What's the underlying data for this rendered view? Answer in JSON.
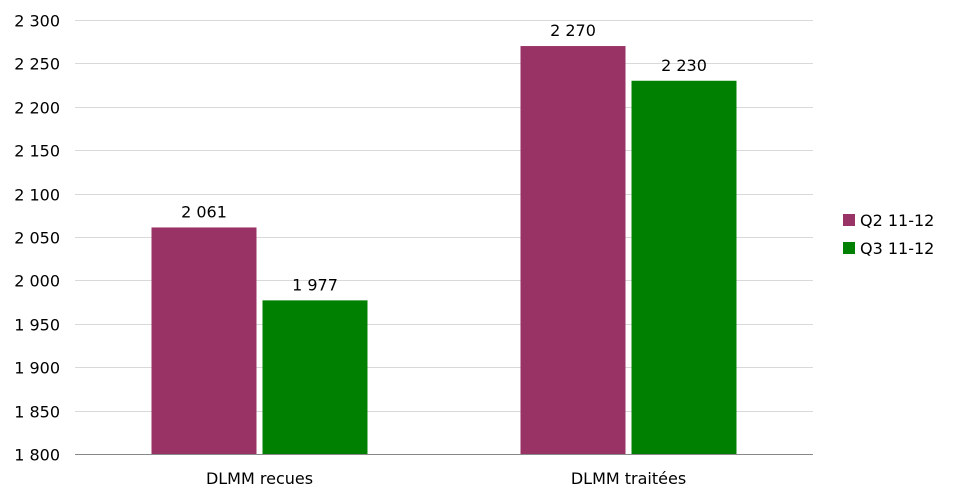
{
  "chart_data": {
    "type": "bar",
    "categories": [
      "DLMM recues",
      "DLMM traitées"
    ],
    "series": [
      {
        "name": "Q2 11-12",
        "color": "#993366",
        "values": [
          2061,
          2270
        ],
        "labels": [
          "2 061",
          "2 270"
        ]
      },
      {
        "name": "Q3 11-12",
        "color": "#008000",
        "values": [
          1977,
          2230
        ],
        "labels": [
          "1 977",
          "2 230"
        ]
      }
    ],
    "ylim": [
      1800,
      2300
    ],
    "yticks": [
      1800,
      1850,
      1900,
      1950,
      2000,
      2050,
      2100,
      2150,
      2200,
      2250,
      2300
    ],
    "ytick_labels": [
      "1 800",
      "1 850",
      "1 900",
      "1 950",
      "2 000",
      "2 050",
      "2 100",
      "2 150",
      "2 200",
      "2 250",
      "2 300"
    ],
    "grid": true,
    "legend_position": "right",
    "title": "",
    "xlabel": "",
    "ylabel": ""
  }
}
